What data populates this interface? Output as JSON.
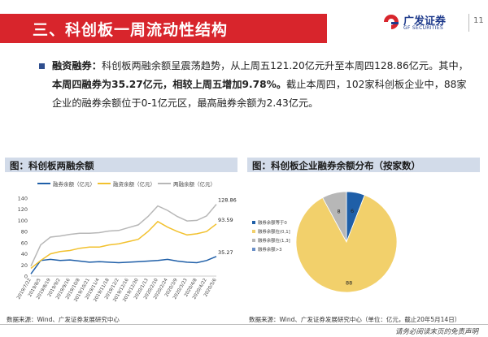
{
  "header": {
    "title": "三、科创板一周流动性结构",
    "logo_cn": "广发证券",
    "logo_en": "GF SECURITIES",
    "page_number": "11"
  },
  "summary": {
    "label": "融资融券：",
    "text1": "科创板两融余额呈震荡趋势，从上周五121.20亿元升至本周四128.86亿元。其中，",
    "bold2": "本周四融券为35.27亿元，相较上周五增加9.78%。",
    "text3": "截止本周四，102家科创板企业中，88家企业的融券余额位于0-1亿元区，最高融券余额为2.43亿元。"
  },
  "left_panel": {
    "title": "图：科创板两融余额",
    "source": "数据来源：Wind、广发证券发展研究中心"
  },
  "right_panel": {
    "title": "图：科创板企业融券余额分布（按家数）",
    "source": "数据来源：Wind、广发证券发展研究中心（单位：亿元，截止20年5月14日）"
  },
  "footer": {
    "disclaimer": "请务必阅读末页的免责声明"
  },
  "colors": {
    "banner": "#d8252c",
    "header_bg": "#d2dbe9",
    "series_margin": "#1f5fa8",
    "series_short": "#f2c12e",
    "series_total": "#b7b7b7",
    "pie_blue": "#1f5fa8",
    "pie_yellow": "#f2d06b",
    "pie_gray": "#b7b7b7"
  },
  "chart_data": [
    {
      "type": "line",
      "ylim": [
        0,
        140
      ],
      "yticks": [
        0,
        20,
        40,
        60,
        80,
        100,
        120,
        140
      ],
      "categories": [
        "2019/7/22",
        "2019/8/5",
        "2019/8/19",
        "2019/9/2",
        "2019/9/16",
        "2019/10/8",
        "2019/10/21",
        "2019/11/4",
        "2019/11/18",
        "2019/12/2",
        "2019/12/16",
        "2019/12/30",
        "2020/1/13",
        "2020/2/10",
        "2020/2/24",
        "2020/3/9",
        "2020/3/23",
        "2020/4/8",
        "2020/4/22",
        "2020/5/6"
      ],
      "series": [
        {
          "name": "融券余额（亿元）",
          "values": [
            4,
            28,
            30,
            28,
            29,
            27,
            25,
            26,
            25,
            24,
            25,
            26,
            27,
            28,
            30,
            27,
            25,
            24,
            28,
            35.27
          ]
        },
        {
          "name": "融资余额（亿元）",
          "values": [
            14,
            28,
            40,
            44,
            46,
            50,
            52,
            52,
            56,
            58,
            62,
            66,
            80,
            98,
            88,
            80,
            74,
            76,
            80,
            93.59
          ]
        },
        {
          "name": "两融余额（亿元）",
          "values": [
            18,
            56,
            70,
            72,
            75,
            77,
            77,
            78,
            81,
            82,
            87,
            92,
            107,
            126,
            118,
            107,
            99,
            100,
            108,
            128.86
          ]
        }
      ],
      "annotations": [
        "128.86",
        "93.59",
        "35.27"
      ]
    },
    {
      "type": "pie",
      "labels": [
        "融券余额等于0",
        "融券余额在(0,1]",
        "融券余额在(1,3]",
        "融券余额>3"
      ],
      "values": [
        6,
        88,
        8,
        0
      ]
    }
  ]
}
